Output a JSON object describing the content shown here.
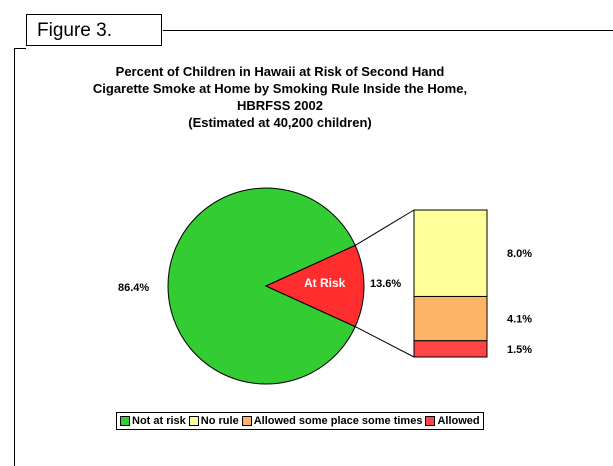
{
  "figure_label": "Figure 3.",
  "chart_data": {
    "type": "pie",
    "title_lines": [
      "Percent of Children in Hawaii at Risk of Second Hand",
      "Cigarette Smoke at Home by Smoking Rule Inside the Home,",
      "HBRFSS 2002",
      "(Estimated at 40,200 children)"
    ],
    "pie": {
      "slices": [
        {
          "name": "Not at risk",
          "value": 86.4,
          "label": "86.4%",
          "color": "#33cc33"
        },
        {
          "name": "At Risk",
          "value": 13.6,
          "label": "13.6%",
          "color": "#ff2d2d"
        }
      ],
      "inner_label": "At Risk"
    },
    "breakdown_bar": {
      "segments": [
        {
          "name": "No rule",
          "value": 8.0,
          "label": "8.0%",
          "color": "#ffff99"
        },
        {
          "name": "Allowed some place some times",
          "value": 4.1,
          "label": "4.1%",
          "color": "#ffb366"
        },
        {
          "name": "Allowed",
          "value": 1.5,
          "label": "1.5%",
          "color": "#ff4444"
        }
      ]
    },
    "legend": [
      {
        "name": "Not at risk",
        "color": "#33cc33"
      },
      {
        "name": "No rule",
        "color": "#ffff99"
      },
      {
        "name": "Allowed some place some times",
        "color": "#ffb366"
      },
      {
        "name": "Allowed",
        "color": "#ff4444"
      }
    ],
    "legend_position": "bottom"
  }
}
